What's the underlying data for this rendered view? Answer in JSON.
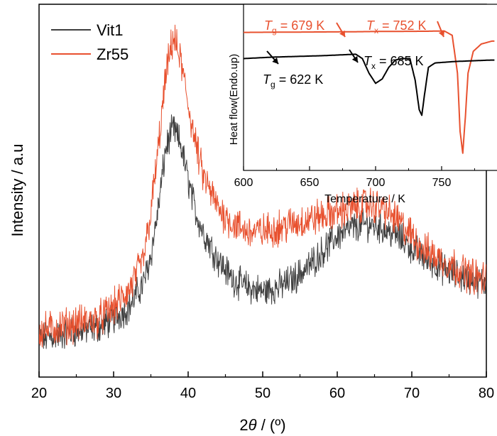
{
  "colors": {
    "vit1": "#3f3f3f",
    "zr55": "#e8512f",
    "axis": "#000000"
  },
  "chart_data": [
    {
      "type": "line",
      "title": "",
      "xlabel_prefix": "2",
      "xlabel_symbol": "θ",
      "xlabel_suffix": " / (º)",
      "ylabel": "Intensity / a.u",
      "xlim": [
        20,
        80
      ],
      "ylim": [
        0,
        100
      ],
      "xticks": [
        "20",
        "30",
        "40",
        "50",
        "60",
        "70",
        "80"
      ],
      "yticks_shown": false,
      "legend_placement": "top-left",
      "series": [
        {
          "name": "Vit1",
          "color": "#3f3f3f",
          "x": [
            20,
            25,
            28,
            30,
            32,
            34,
            35,
            36,
            37,
            38,
            39,
            40,
            41,
            42,
            44,
            46,
            48,
            50,
            52,
            54,
            56,
            58,
            60,
            62,
            64,
            66,
            68,
            70,
            72,
            74,
            76,
            78,
            80
          ],
          "y": [
            4,
            6,
            7,
            9,
            12,
            18,
            25,
            37,
            52,
            57,
            53,
            44,
            36,
            31,
            24,
            19,
            17,
            16,
            17,
            19,
            22,
            26,
            30,
            32,
            33,
            32,
            30,
            27,
            24,
            22,
            20,
            19,
            18
          ]
        },
        {
          "name": "Zr55",
          "color": "#e8512f",
          "x": [
            20,
            25,
            28,
            30,
            32,
            34,
            35,
            36,
            37,
            38,
            39,
            40,
            41,
            42,
            44,
            46,
            48,
            50,
            52,
            54,
            56,
            58,
            60,
            62,
            64,
            66,
            68,
            70,
            72,
            74,
            76,
            78,
            80
          ],
          "y": [
            6,
            8,
            9,
            12,
            16,
            24,
            36,
            52,
            70,
            80,
            74,
            63,
            53,
            45,
            37,
            33,
            31,
            31,
            32,
            33,
            34,
            35,
            36,
            37,
            38,
            37,
            34,
            30,
            26,
            24,
            22,
            20,
            19
          ]
        }
      ],
      "legend": [
        {
          "label": "Vit1",
          "color": "#3f3f3f"
        },
        {
          "label": "Zr55",
          "color": "#e8512f"
        }
      ]
    },
    {
      "type": "line",
      "title": "",
      "xlabel": "Temperature / K",
      "ylabel": "Heat flow(Endo.up)",
      "xlim": [
        600,
        790
      ],
      "ylim": [
        0,
        100
      ],
      "xticks": [
        "600",
        "650",
        "700",
        "750"
      ],
      "yticks_shown": false,
      "series": [
        {
          "name": "Zr55",
          "color": "#e8512f",
          "x": [
            600,
            640,
            679,
            700,
            740,
            752,
            758,
            762,
            764,
            766,
            768,
            770,
            774,
            780,
            788
          ],
          "y": [
            88,
            88.2,
            88.4,
            88.6,
            88.8,
            89,
            86,
            60,
            20,
            5,
            30,
            60,
            75,
            80,
            82
          ]
        },
        {
          "name": "Vit1",
          "color": "#000000",
          "x": [
            600,
            622,
            660,
            685,
            690,
            695,
            700,
            705,
            710,
            715,
            720,
            726,
            730,
            733,
            735,
            737,
            740,
            745,
            760,
            788
          ],
          "y": [
            70,
            71,
            72,
            73,
            70,
            60,
            53,
            56,
            64,
            69,
            70,
            70,
            55,
            35,
            31,
            45,
            64,
            67,
            68,
            69
          ]
        }
      ],
      "annotations": [
        {
          "id": "zr55-tg",
          "symbol": "T",
          "sub": "g",
          "text": " = 679 K",
          "color": "#e8512f",
          "at_x": 679
        },
        {
          "id": "zr55-tx",
          "symbol": "T",
          "sub": "x",
          "text": " = 752 K",
          "color": "#e8512f",
          "at_x": 752
        },
        {
          "id": "vit1-tg",
          "symbol": "T",
          "sub": "g",
          "text": " = 622 K",
          "color": "#000000",
          "at_x": 622
        },
        {
          "id": "vit1-tx",
          "symbol": "T",
          "sub": "x",
          "text": " = 685 K",
          "color": "#000000",
          "at_x": 685
        }
      ]
    }
  ]
}
